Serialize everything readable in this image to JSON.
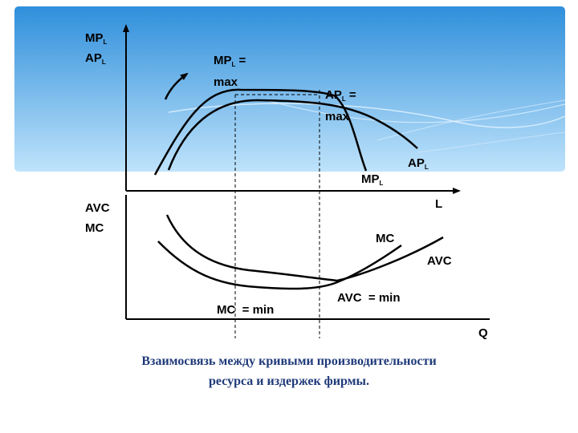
{
  "header": {
    "gradient_top": "#2F8FDB",
    "gradient_bottom": "#BFE3FB"
  },
  "upper_graph": {
    "y_axis": {
      "main": "MP",
      "sub": "L",
      "main2": "AP",
      "sub2": "L"
    },
    "x_axis": "L",
    "mp_max": {
      "main": "MP",
      "sub": "L",
      "rest": " =",
      "line2": "max"
    },
    "ap_max": {
      "main": "AP",
      "sub": "L",
      "rest": " =",
      "line2": "max"
    },
    "ap_curve": {
      "main": "AP",
      "sub": "L"
    },
    "mp_curve": {
      "main": "MP",
      "sub": "L"
    }
  },
  "lower_graph": {
    "y_axis": {
      "line1": "AVC",
      "line2": "MC"
    },
    "x_axis": "Q",
    "mc_curve": "MC",
    "avc_curve": "AVC",
    "mc_min": "MC  = min",
    "avc_min": "AVC  = min"
  },
  "caption": {
    "line1": "Взаимосвязь между кривыми производительности",
    "line2": "ресурса и издержек фирмы."
  },
  "colors": {
    "caption": "#1F3A7A",
    "curves": "#000000"
  }
}
